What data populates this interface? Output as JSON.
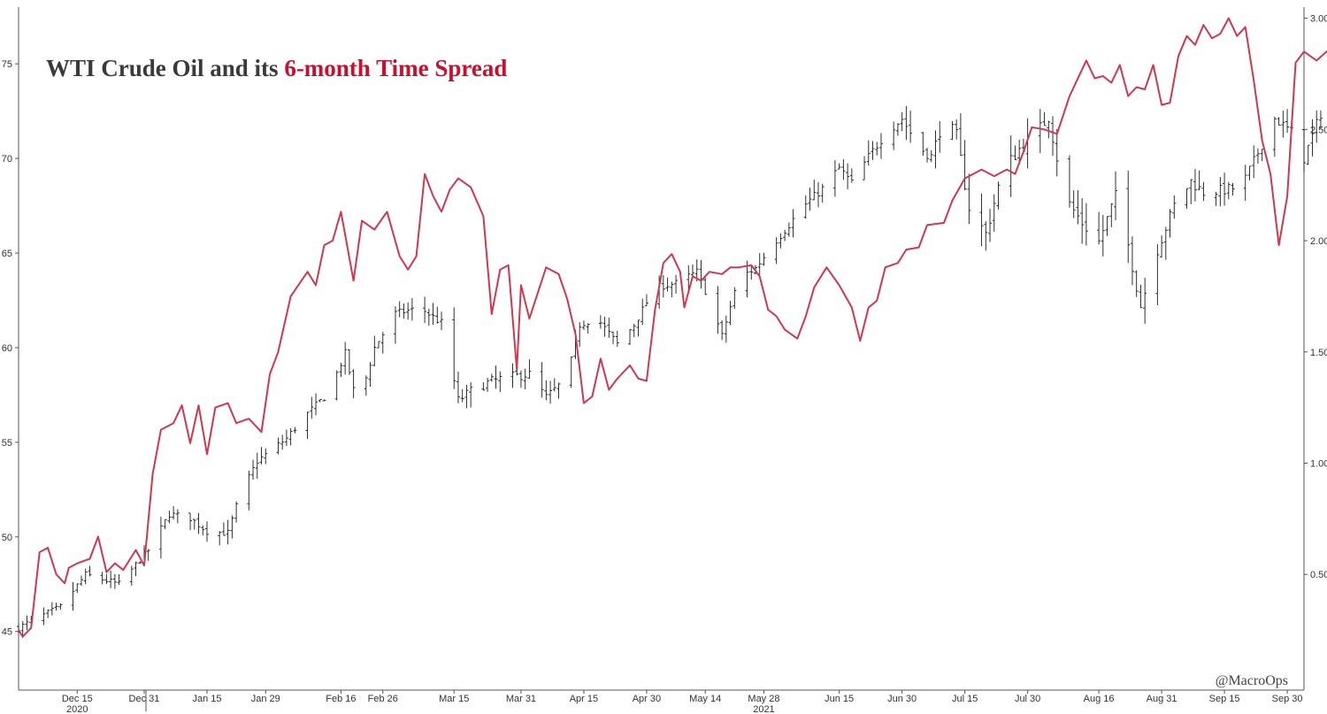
{
  "chart_data": {
    "type": "line",
    "title": {
      "part1": "WTI Crude Oil and its ",
      "part2": "6-month Time Spread"
    },
    "watermark": "@MacroOps",
    "colors": {
      "price_bars": "#1a1a1a",
      "spread_line": "#d0384f",
      "title_dark": "#3a3a3a",
      "title_accent": "#c8102e"
    },
    "x_axis": {
      "ticks": [
        "Dec 15",
        "Dec 31",
        "Jan 15",
        "Jan 29",
        "Feb 16",
        "Feb 26",
        "Mar 15",
        "Mar 31",
        "Apr 15",
        "Apr 30",
        "May 14",
        "May 28",
        "Jun 15",
        "Jun 30",
        "Jul 15",
        "Jul 30",
        "Aug 16",
        "Aug 31",
        "Sep 15",
        "Sep 30"
      ],
      "year_labels": [
        {
          "label": "2020",
          "at": "Dec 15"
        },
        {
          "label": "2021",
          "at": "May 28"
        }
      ]
    },
    "y_left": {
      "ticks": [
        "45",
        "50",
        "55",
        "60",
        "65",
        "70",
        "75"
      ],
      "range": [
        41.9,
        78.0
      ]
    },
    "y_right": {
      "ticks": [
        "0.50",
        "1.00",
        "1.50",
        "2.00",
        "2.50",
        "3.00"
      ],
      "range": [
        -0.02,
        3.05
      ]
    },
    "series": [
      {
        "name": "WTI Crude Oil",
        "kind": "ohlc",
        "axis": "left",
        "x_range": [
          "Dec 1",
          "Oct 4"
        ],
        "keypoints": [
          [
            0,
            45.2
          ],
          [
            10,
            46.3
          ],
          [
            16,
            48.0
          ],
          [
            24,
            47.5
          ],
          [
            31,
            49.3
          ],
          [
            36,
            51.2
          ],
          [
            41,
            51.0
          ],
          [
            45,
            50.3
          ],
          [
            50,
            50.2
          ],
          [
            53,
            52.3
          ],
          [
            57,
            54.0
          ],
          [
            64,
            55.2
          ],
          [
            68,
            56.3
          ],
          [
            74,
            57.6
          ],
          [
            78,
            59.7
          ],
          [
            81,
            56.8
          ],
          [
            85,
            60.0
          ],
          [
            90,
            61.8
          ],
          [
            96,
            62.1
          ],
          [
            101,
            61.3
          ],
          [
            105,
            57.2
          ],
          [
            110,
            58.0
          ],
          [
            116,
            58.4
          ],
          [
            122,
            58.6
          ],
          [
            126,
            57.4
          ],
          [
            131,
            58.4
          ],
          [
            134,
            61.2
          ],
          [
            138,
            61.6
          ],
          [
            143,
            60.2
          ],
          [
            147,
            61.2
          ],
          [
            152,
            63.2
          ],
          [
            157,
            63.4
          ],
          [
            162,
            64.0
          ],
          [
            165,
            62.5
          ],
          [
            168,
            60.6
          ],
          [
            172,
            63.7
          ],
          [
            176,
            64.2
          ],
          [
            180,
            65.4
          ],
          [
            184,
            66.5
          ],
          [
            188,
            67.6
          ],
          [
            192,
            68.4
          ],
          [
            196,
            69.5
          ],
          [
            199,
            68.7
          ],
          [
            203,
            70.1
          ],
          [
            207,
            71.3
          ],
          [
            211,
            72.1
          ],
          [
            215,
            70.6
          ],
          [
            218,
            70.1
          ],
          [
            221,
            72.1
          ],
          [
            224,
            71.2
          ],
          [
            227,
            67.4
          ],
          [
            231,
            66.0
          ],
          [
            235,
            69.3
          ],
          [
            239,
            70.5
          ],
          [
            243,
            71.3
          ],
          [
            246,
            72.2
          ],
          [
            250,
            67.9
          ],
          [
            254,
            66.6
          ],
          [
            258,
            65.6
          ],
          [
            262,
            68.0
          ],
          [
            265,
            65.4
          ],
          [
            268,
            62.2
          ],
          [
            272,
            65.2
          ],
          [
            276,
            67.5
          ],
          [
            280,
            68.8
          ],
          [
            283,
            68.2
          ],
          [
            287,
            68.3
          ],
          [
            292,
            68.5
          ],
          [
            296,
            70.3
          ],
          [
            300,
            72.1
          ],
          [
            304,
            71.4
          ],
          [
            306,
            69.4
          ],
          [
            310,
            71.8
          ],
          [
            314,
            74.1
          ],
          [
            317,
            75.2
          ],
          [
            320,
            74.4
          ],
          [
            321,
            75.8
          ]
        ],
        "volatility": [
          [
            0,
            0.55
          ],
          [
            100,
            0.7
          ],
          [
            110,
            1.05
          ],
          [
            130,
            0.6
          ],
          [
            210,
            0.8
          ],
          [
            228,
            1.2
          ],
          [
            260,
            1.2
          ],
          [
            300,
            0.85
          ],
          [
            321,
            1.1
          ]
        ]
      },
      {
        "name": "6-month Time Spread",
        "kind": "line",
        "axis": "right",
        "x_range": [
          "Dec 1",
          "Oct 4"
        ],
        "keypoints": [
          [
            0,
            0.25
          ],
          [
            1,
            0.22
          ],
          [
            3,
            0.26
          ],
          [
            5,
            0.6
          ],
          [
            7,
            0.62
          ],
          [
            9,
            0.5
          ],
          [
            11,
            0.46
          ],
          [
            12,
            0.53
          ],
          [
            14,
            0.55
          ],
          [
            17,
            0.57
          ],
          [
            19,
            0.67
          ],
          [
            21,
            0.51
          ],
          [
            23,
            0.55
          ],
          [
            25,
            0.52
          ],
          [
            28,
            0.61
          ],
          [
            30,
            0.54
          ],
          [
            32,
            0.95
          ],
          [
            34,
            1.15
          ],
          [
            37,
            1.18
          ],
          [
            39,
            1.26
          ],
          [
            41,
            1.09
          ],
          [
            43,
            1.26
          ],
          [
            45,
            1.04
          ],
          [
            47,
            1.25
          ],
          [
            50,
            1.27
          ],
          [
            52,
            1.18
          ],
          [
            55,
            1.2
          ],
          [
            58,
            1.14
          ],
          [
            60,
            1.4
          ],
          [
            62,
            1.5
          ],
          [
            65,
            1.75
          ],
          [
            69,
            1.86
          ],
          [
            71,
            1.8
          ],
          [
            73,
            1.98
          ],
          [
            75,
            2.0
          ],
          [
            77,
            2.13
          ],
          [
            80,
            1.82
          ],
          [
            82,
            2.09
          ],
          [
            85,
            2.05
          ],
          [
            88,
            2.13
          ],
          [
            91,
            1.93
          ],
          [
            93,
            1.87
          ],
          [
            95,
            1.93
          ],
          [
            97,
            2.3
          ],
          [
            99,
            2.2
          ],
          [
            101,
            2.13
          ],
          [
            103,
            2.23
          ],
          [
            105,
            2.28
          ],
          [
            108,
            2.24
          ],
          [
            111,
            2.11
          ],
          [
            113,
            1.67
          ],
          [
            115,
            1.87
          ],
          [
            117,
            1.89
          ],
          [
            119,
            1.42
          ],
          [
            120,
            1.8
          ],
          [
            122,
            1.65
          ],
          [
            126,
            1.88
          ],
          [
            129,
            1.85
          ],
          [
            131,
            1.74
          ],
          [
            133,
            1.58
          ],
          [
            135,
            1.27
          ],
          [
            137,
            1.3
          ],
          [
            139,
            1.47
          ],
          [
            141,
            1.33
          ],
          [
            143,
            1.38
          ],
          [
            146,
            1.44
          ],
          [
            148,
            1.38
          ],
          [
            150,
            1.37
          ],
          [
            152,
            1.69
          ],
          [
            154,
            1.9
          ],
          [
            156,
            1.94
          ],
          [
            158,
            1.86
          ],
          [
            159,
            1.7
          ],
          [
            161,
            1.84
          ],
          [
            163,
            1.82
          ],
          [
            165,
            1.86
          ],
          [
            168,
            1.85
          ],
          [
            170,
            1.88
          ],
          [
            172,
            1.88
          ],
          [
            175,
            1.89
          ],
          [
            177,
            1.84
          ],
          [
            179,
            1.69
          ],
          [
            181,
            1.66
          ],
          [
            183,
            1.6
          ],
          [
            186,
            1.56
          ],
          [
            188,
            1.66
          ],
          [
            190,
            1.79
          ],
          [
            193,
            1.88
          ],
          [
            196,
            1.8
          ],
          [
            199,
            1.7
          ],
          [
            201,
            1.55
          ],
          [
            203,
            1.7
          ],
          [
            205,
            1.73
          ],
          [
            207,
            1.88
          ],
          [
            210,
            1.9
          ],
          [
            212,
            1.96
          ],
          [
            215,
            1.97
          ],
          [
            217,
            2.07
          ],
          [
            221,
            2.08
          ],
          [
            223,
            2.18
          ],
          [
            226,
            2.28
          ],
          [
            230,
            2.32
          ],
          [
            233,
            2.29
          ],
          [
            236,
            2.32
          ],
          [
            238,
            2.3
          ],
          [
            240,
            2.4
          ],
          [
            242,
            2.51
          ],
          [
            245,
            2.5
          ],
          [
            248,
            2.48
          ],
          [
            251,
            2.65
          ],
          [
            255,
            2.81
          ],
          [
            257,
            2.73
          ],
          [
            259,
            2.74
          ],
          [
            261,
            2.71
          ],
          [
            263,
            2.79
          ],
          [
            265,
            2.65
          ],
          [
            267,
            2.69
          ],
          [
            269,
            2.68
          ],
          [
            271,
            2.79
          ],
          [
            273,
            2.61
          ],
          [
            275,
            2.62
          ],
          [
            277,
            2.83
          ],
          [
            279,
            2.92
          ],
          [
            281,
            2.88
          ],
          [
            283,
            2.97
          ],
          [
            285,
            2.91
          ],
          [
            287,
            2.93
          ],
          [
            289,
            3.0
          ],
          [
            291,
            2.92
          ],
          [
            293,
            2.96
          ],
          [
            295,
            2.72
          ],
          [
            297,
            2.45
          ],
          [
            299,
            2.3
          ],
          [
            301,
            1.98
          ],
          [
            303,
            2.2
          ],
          [
            305,
            2.8
          ],
          [
            307,
            2.85
          ],
          [
            310,
            2.81
          ],
          [
            313,
            2.86
          ],
          [
            315,
            2.94
          ],
          [
            317,
            2.45
          ],
          [
            319,
            2.08
          ],
          [
            321,
            1.9
          ]
        ]
      }
    ]
  }
}
